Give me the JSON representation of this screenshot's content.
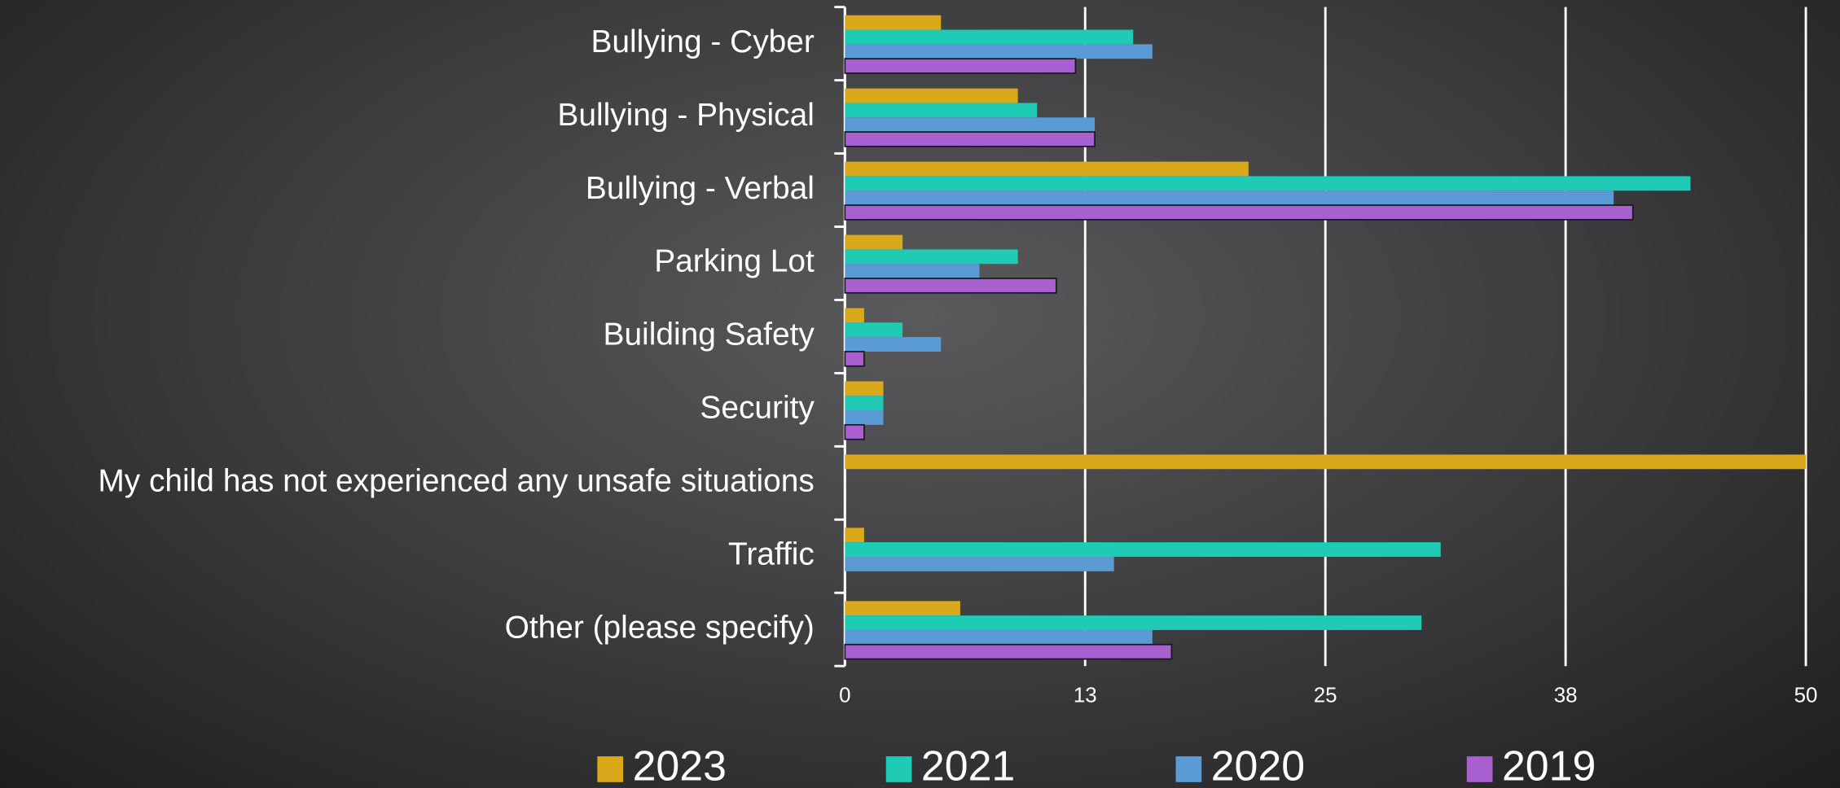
{
  "chart_data": {
    "type": "bar",
    "orientation": "horizontal",
    "categories": [
      "Bullying - Cyber",
      "Bullying - Physical",
      "Bullying - Verbal",
      "Parking Lot",
      "Building Safety",
      "Security",
      "My child has not experienced any unsafe situations",
      "Traffic",
      "Other (please specify)"
    ],
    "series": [
      {
        "name": "2023",
        "color": "#d9a81b",
        "values": [
          5,
          9,
          21,
          3,
          1,
          2,
          50,
          1,
          6
        ]
      },
      {
        "name": "2021",
        "color": "#1fcbb5",
        "values": [
          15,
          10,
          44,
          9,
          3,
          2,
          0,
          31,
          30
        ]
      },
      {
        "name": "2020",
        "color": "#5b9bd5",
        "values": [
          16,
          13,
          40,
          7,
          5,
          2,
          0,
          14,
          16
        ]
      },
      {
        "name": "2019",
        "color": "#a85fd0",
        "values": [
          12,
          13,
          41,
          11,
          1,
          1,
          0,
          0,
          17
        ]
      }
    ],
    "xlim": [
      0,
      50
    ],
    "xticks": [
      0,
      {
        "value": 12.5,
        "label": "13"
      },
      25,
      {
        "value": 37.5,
        "label": "38"
      },
      50
    ],
    "grid": true,
    "legend": "bottom"
  }
}
